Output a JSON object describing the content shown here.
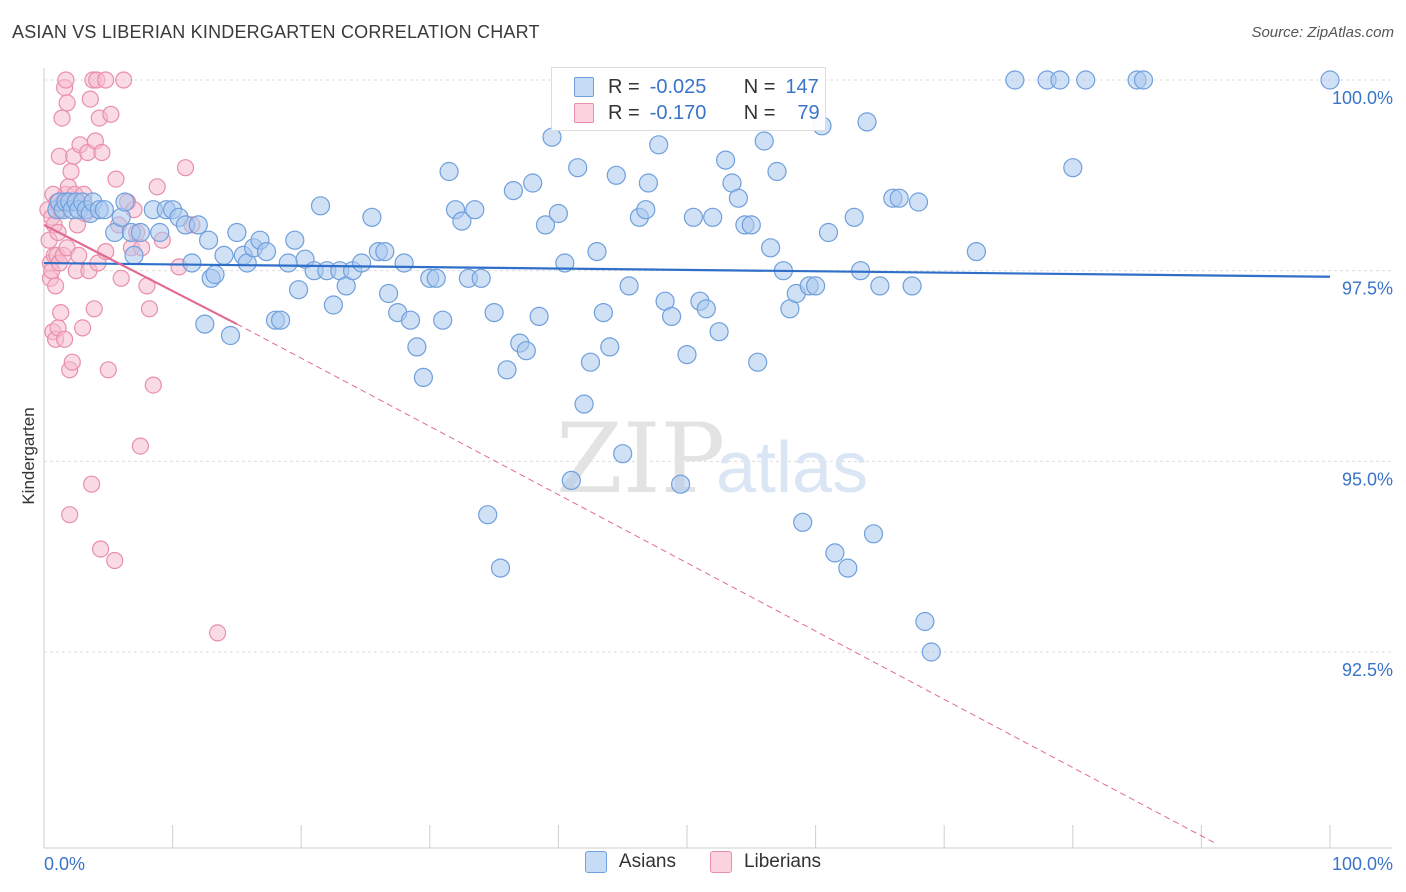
{
  "title": "ASIAN VS LIBERIAN KINDERGARTEN CORRELATION CHART",
  "source": "Source: ZipAtlas.com",
  "watermark": {
    "zip": "ZIP",
    "atlas": "atlas"
  },
  "legend": {
    "r_label": "R =",
    "n_label": "N =",
    "asian": {
      "r": "-0.025",
      "n": "147"
    },
    "liberian": {
      "r": "-0.170",
      "n": "79"
    }
  },
  "colors": {
    "asian_fill": "#a9c8ef",
    "asian_stroke": "#6f9fdc",
    "asian_line": "#2f6fc9",
    "liberian_fill": "#f6bccd",
    "liberian_stroke": "#e98fab",
    "liberian_line": "#e06a94",
    "tick_label": "#3a74c8",
    "grid": "#dcdcdc"
  },
  "chart_data": {
    "type": "scatter",
    "title": "ASIAN VS LIBERIAN KINDERGARTEN CORRELATION CHART",
    "xlabel": "",
    "ylabel": "Kindergarten",
    "xlim": [
      0,
      100
    ],
    "ylim": [
      90.0,
      100.2
    ],
    "x_tick_labels": [
      "0.0%",
      "100.0%"
    ],
    "y_ticks": [
      100.0,
      97.5,
      95.0,
      92.5
    ],
    "y_tick_labels": [
      "100.0%",
      "97.5%",
      "95.0%",
      "92.5%"
    ],
    "series": [
      {
        "name": "Asians",
        "r": -0.025,
        "n": 147,
        "trend": {
          "x0": 0,
          "y0": 97.6,
          "x1": 100,
          "y1": 97.42
        },
        "points": [
          [
            1.0,
            98.3
          ],
          [
            1.2,
            98.4
          ],
          [
            1.5,
            98.3
          ],
          [
            1.7,
            98.4
          ],
          [
            2.0,
            98.4
          ],
          [
            2.2,
            98.3
          ],
          [
            2.5,
            98.4
          ],
          [
            2.7,
            98.3
          ],
          [
            3.0,
            98.4
          ],
          [
            3.3,
            98.3
          ],
          [
            3.6,
            98.25
          ],
          [
            3.8,
            98.4
          ],
          [
            4.3,
            98.3
          ],
          [
            4.7,
            98.3
          ],
          [
            5.5,
            98.0
          ],
          [
            6.0,
            98.2
          ],
          [
            6.3,
            98.4
          ],
          [
            6.8,
            98.0
          ],
          [
            7.0,
            97.7
          ],
          [
            7.5,
            98.0
          ],
          [
            8.5,
            98.3
          ],
          [
            9.0,
            98.0
          ],
          [
            9.5,
            98.3
          ],
          [
            10.0,
            98.3
          ],
          [
            10.5,
            98.2
          ],
          [
            11.0,
            98.1
          ],
          [
            11.5,
            97.6
          ],
          [
            12.0,
            98.1
          ],
          [
            12.5,
            96.8
          ],
          [
            12.8,
            97.9
          ],
          [
            13.0,
            97.4
          ],
          [
            13.3,
            97.45
          ],
          [
            14.0,
            97.7
          ],
          [
            14.5,
            96.65
          ],
          [
            15.0,
            98.0
          ],
          [
            15.5,
            97.7
          ],
          [
            15.8,
            97.6
          ],
          [
            16.3,
            97.8
          ],
          [
            16.8,
            97.9
          ],
          [
            17.3,
            97.75
          ],
          [
            18.0,
            96.85
          ],
          [
            18.4,
            96.85
          ],
          [
            19.0,
            97.6
          ],
          [
            19.5,
            97.9
          ],
          [
            19.8,
            97.25
          ],
          [
            20.3,
            97.65
          ],
          [
            21.0,
            97.5
          ],
          [
            21.5,
            98.35
          ],
          [
            22.0,
            97.5
          ],
          [
            22.5,
            97.05
          ],
          [
            23.0,
            97.5
          ],
          [
            23.5,
            97.3
          ],
          [
            24.0,
            97.5
          ],
          [
            24.7,
            97.6
          ],
          [
            25.5,
            98.2
          ],
          [
            26.0,
            97.75
          ],
          [
            26.5,
            97.75
          ],
          [
            26.8,
            97.2
          ],
          [
            27.5,
            96.95
          ],
          [
            28.0,
            97.6
          ],
          [
            28.5,
            96.85
          ],
          [
            29.0,
            96.5
          ],
          [
            29.5,
            96.1
          ],
          [
            30.0,
            97.4
          ],
          [
            30.5,
            97.4
          ],
          [
            31.0,
            96.85
          ],
          [
            31.5,
            98.8
          ],
          [
            32.0,
            98.3
          ],
          [
            32.5,
            98.15
          ],
          [
            33.0,
            97.4
          ],
          [
            33.5,
            98.3
          ],
          [
            34.0,
            97.4
          ],
          [
            34.5,
            94.3
          ],
          [
            35.0,
            96.95
          ],
          [
            35.5,
            93.6
          ],
          [
            36.0,
            96.2
          ],
          [
            36.5,
            98.55
          ],
          [
            37.0,
            96.55
          ],
          [
            37.5,
            96.45
          ],
          [
            38.0,
            98.65
          ],
          [
            38.5,
            96.9
          ],
          [
            39.0,
            98.1
          ],
          [
            39.5,
            99.25
          ],
          [
            40.0,
            98.25
          ],
          [
            40.5,
            97.6
          ],
          [
            41.0,
            94.75
          ],
          [
            41.5,
            98.85
          ],
          [
            42.0,
            95.75
          ],
          [
            42.5,
            96.3
          ],
          [
            43.0,
            97.75
          ],
          [
            43.5,
            96.95
          ],
          [
            44.0,
            96.5
          ],
          [
            44.5,
            98.75
          ],
          [
            45.0,
            95.1
          ],
          [
            45.5,
            97.3
          ],
          [
            46.3,
            98.2
          ],
          [
            46.8,
            98.3
          ],
          [
            47.0,
            98.65
          ],
          [
            47.8,
            99.15
          ],
          [
            48.3,
            97.1
          ],
          [
            48.8,
            96.9
          ],
          [
            49.5,
            94.7
          ],
          [
            50.0,
            96.4
          ],
          [
            50.5,
            98.2
          ],
          [
            51.0,
            97.1
          ],
          [
            51.5,
            97.0
          ],
          [
            52.0,
            98.2
          ],
          [
            52.5,
            96.7
          ],
          [
            53.0,
            98.95
          ],
          [
            53.5,
            98.65
          ],
          [
            54.0,
            98.45
          ],
          [
            54.5,
            98.1
          ],
          [
            55.0,
            98.1
          ],
          [
            55.5,
            96.3
          ],
          [
            56.0,
            99.2
          ],
          [
            56.5,
            97.8
          ],
          [
            57.0,
            98.8
          ],
          [
            57.5,
            97.5
          ],
          [
            58.0,
            97.0
          ],
          [
            58.5,
            97.2
          ],
          [
            59.0,
            94.2
          ],
          [
            59.5,
            97.3
          ],
          [
            60.0,
            97.3
          ],
          [
            60.5,
            99.4
          ],
          [
            61.0,
            98.0
          ],
          [
            61.5,
            93.8
          ],
          [
            62.5,
            93.6
          ],
          [
            63.0,
            98.2
          ],
          [
            63.5,
            97.5
          ],
          [
            64.0,
            99.45
          ],
          [
            64.5,
            94.05
          ],
          [
            65.0,
            97.3
          ],
          [
            66.0,
            98.45
          ],
          [
            66.5,
            98.45
          ],
          [
            67.5,
            97.3
          ],
          [
            68.0,
            98.4
          ],
          [
            68.5,
            92.9
          ],
          [
            69.0,
            92.5
          ],
          [
            72.5,
            97.75
          ],
          [
            75.5,
            100.0
          ],
          [
            78.0,
            100.0
          ],
          [
            79.0,
            100.0
          ],
          [
            80.0,
            98.85
          ],
          [
            81.0,
            100.0
          ],
          [
            85.0,
            100.0
          ],
          [
            85.5,
            100.0
          ],
          [
            100.0,
            100.0
          ]
        ]
      },
      {
        "name": "Liberians",
        "r": -0.17,
        "n": 79,
        "trend_solid": {
          "x0": 0,
          "y0": 98.1,
          "x1": 15,
          "y1": 96.8
        },
        "trend_dashed": {
          "x0": 15,
          "y0": 96.8,
          "x1": 91,
          "y1": 90.0
        },
        "points": [
          [
            0.3,
            98.3
          ],
          [
            0.4,
            97.9
          ],
          [
            0.5,
            97.6
          ],
          [
            0.5,
            97.4
          ],
          [
            0.6,
            98.2
          ],
          [
            0.6,
            97.5
          ],
          [
            0.7,
            98.5
          ],
          [
            0.7,
            96.7
          ],
          [
            0.8,
            97.7
          ],
          [
            0.8,
            98.1
          ],
          [
            0.9,
            97.3
          ],
          [
            0.9,
            96.6
          ],
          [
            1.0,
            98.4
          ],
          [
            1.0,
            97.7
          ],
          [
            1.1,
            98.0
          ],
          [
            1.1,
            96.75
          ],
          [
            1.2,
            99.0
          ],
          [
            1.2,
            97.6
          ],
          [
            1.3,
            98.3
          ],
          [
            1.3,
            96.95
          ],
          [
            1.4,
            99.5
          ],
          [
            1.5,
            98.4
          ],
          [
            1.5,
            97.7
          ],
          [
            1.6,
            99.9
          ],
          [
            1.6,
            96.6
          ],
          [
            1.7,
            100.0
          ],
          [
            1.7,
            98.5
          ],
          [
            1.8,
            99.7
          ],
          [
            1.8,
            97.8
          ],
          [
            1.9,
            98.6
          ],
          [
            2.0,
            96.2
          ],
          [
            2.0,
            94.3
          ],
          [
            2.1,
            98.8
          ],
          [
            2.2,
            96.3
          ],
          [
            2.3,
            99.0
          ],
          [
            2.4,
            98.5
          ],
          [
            2.5,
            97.5
          ],
          [
            2.6,
            98.1
          ],
          [
            2.7,
            97.7
          ],
          [
            2.8,
            99.15
          ],
          [
            3.0,
            96.75
          ],
          [
            3.1,
            98.5
          ],
          [
            3.2,
            98.25
          ],
          [
            3.4,
            99.05
          ],
          [
            3.5,
            97.5
          ],
          [
            3.6,
            99.75
          ],
          [
            3.7,
            94.7
          ],
          [
            3.8,
            100.0
          ],
          [
            3.9,
            97.0
          ],
          [
            4.0,
            99.2
          ],
          [
            4.1,
            100.0
          ],
          [
            4.2,
            97.6
          ],
          [
            4.3,
            99.5
          ],
          [
            4.4,
            93.85
          ],
          [
            4.5,
            99.05
          ],
          [
            4.8,
            100.0
          ],
          [
            4.8,
            97.75
          ],
          [
            5.0,
            96.2
          ],
          [
            5.2,
            99.55
          ],
          [
            5.5,
            93.7
          ],
          [
            5.6,
            98.7
          ],
          [
            5.8,
            98.1
          ],
          [
            6.0,
            97.4
          ],
          [
            6.2,
            100.0
          ],
          [
            6.5,
            98.4
          ],
          [
            6.8,
            97.8
          ],
          [
            7.0,
            98.3
          ],
          [
            7.2,
            98.0
          ],
          [
            7.5,
            95.2
          ],
          [
            7.6,
            97.8
          ],
          [
            8.0,
            97.3
          ],
          [
            8.2,
            97.0
          ],
          [
            8.5,
            96.0
          ],
          [
            8.8,
            98.6
          ],
          [
            9.2,
            97.9
          ],
          [
            10.5,
            97.55
          ],
          [
            11.0,
            98.85
          ],
          [
            11.5,
            98.1
          ],
          [
            13.5,
            92.75
          ]
        ]
      }
    ]
  }
}
